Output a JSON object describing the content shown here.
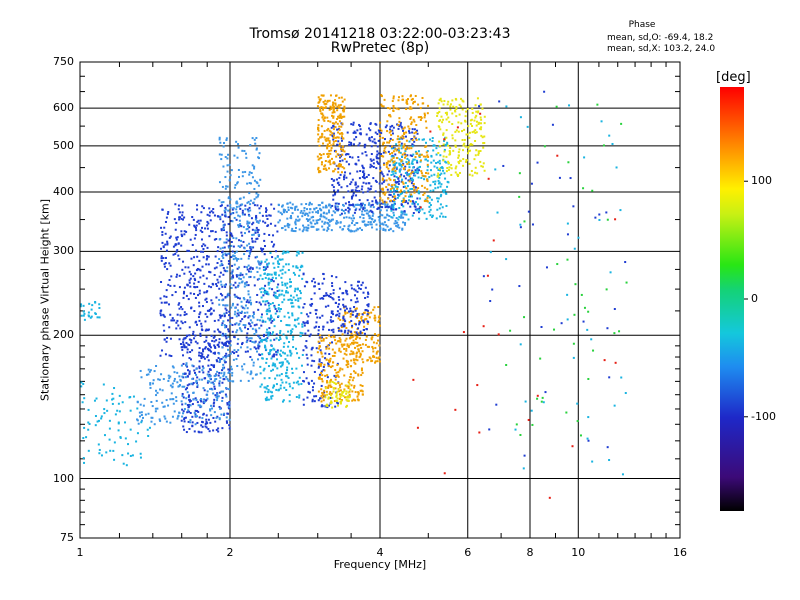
{
  "chart_data": {
    "type": "scatter",
    "title": "Tromsø 20141218 03:22:00-03:23:43",
    "subtitle": "RwPretec (8p)",
    "xlabel": "Frequency [MHz]",
    "ylabel": "Stationary phase Virtual Height [km]",
    "x_scale": "log",
    "y_scale": "log",
    "xlim": [
      1,
      16
    ],
    "ylim": [
      75,
      750
    ],
    "x_ticks": [
      1,
      2,
      4,
      6,
      8,
      10,
      16
    ],
    "x_grid": [
      2,
      4,
      6,
      8,
      10
    ],
    "y_ticks": [
      75,
      100,
      200,
      300,
      400,
      500,
      600,
      750
    ],
    "y_grid": [
      100,
      200,
      300,
      400,
      500,
      600
    ],
    "grid": true,
    "phase_legend": {
      "title": "Phase",
      "o_line": "mean, sd,O: -69.4, 18.2",
      "x_line": "mean, sd,X: 103.2, 24.0"
    },
    "colorbar": {
      "unit": "[deg]",
      "ticks": [
        100,
        0,
        -100
      ],
      "range": [
        -180,
        180
      ]
    },
    "colors": {
      "blue": "#1e3cd2",
      "cyan": "#19b4e1",
      "lightblue": "#3c96e6",
      "yellow": "#e6e614",
      "orange": "#f0a000",
      "red": "#e61e14",
      "green": "#28d23c",
      "lime": "#b4e61e"
    },
    "clusters": [
      {
        "x": [
          1.45,
          2.5
        ],
        "y": [
          180,
          380
        ],
        "color": "blue",
        "n": 700
      },
      {
        "x": [
          1.6,
          2.0
        ],
        "y": [
          125,
          200
        ],
        "color": "blue",
        "n": 250
      },
      {
        "x": [
          1.3,
          2.0
        ],
        "y": [
          130,
          175
        ],
        "color": "lightblue",
        "n": 200
      },
      {
        "x": [
          1.9,
          2.3
        ],
        "y": [
          160,
          520
        ],
        "color": "lightblue",
        "n": 350
      },
      {
        "x": [
          2.3,
          2.8
        ],
        "y": [
          145,
          300
        ],
        "color": "cyan",
        "n": 350
      },
      {
        "x": [
          2.5,
          4.5
        ],
        "y": [
          330,
          380
        ],
        "color": "lightblue",
        "n": 350
      },
      {
        "x": [
          3.2,
          4.8
        ],
        "y": [
          360,
          560
        ],
        "color": "blue",
        "n": 400
      },
      {
        "x": [
          4.2,
          5.5
        ],
        "y": [
          350,
          520
        ],
        "color": "cyan",
        "n": 250
      },
      {
        "x": [
          4.0,
          5.0
        ],
        "y": [
          380,
          640
        ],
        "color": "orange",
        "n": 250
      },
      {
        "x": [
          5.2,
          6.5
        ],
        "y": [
          430,
          630
        ],
        "color": "yellow",
        "n": 200
      },
      {
        "x": [
          3.0,
          3.4
        ],
        "y": [
          440,
          640
        ],
        "color": "orange",
        "n": 220
      },
      {
        "x": [
          2.8,
          3.3
        ],
        "y": [
          140,
          270
        ],
        "color": "blue",
        "n": 180
      },
      {
        "x": [
          3.0,
          3.7
        ],
        "y": [
          145,
          200
        ],
        "color": "orange",
        "n": 200
      },
      {
        "x": [
          3.3,
          4.0
        ],
        "y": [
          175,
          230
        ],
        "color": "orange",
        "n": 150
      },
      {
        "x": [
          3.3,
          3.8
        ],
        "y": [
          200,
          260
        ],
        "color": "blue",
        "n": 100
      },
      {
        "x": [
          3.1,
          3.5
        ],
        "y": [
          140,
          160
        ],
        "color": "yellow",
        "n": 60
      },
      {
        "x": [
          1.0,
          1.4
        ],
        "y": [
          105,
          160
        ],
        "color": "cyan",
        "n": 80
      },
      {
        "x": [
          1.0,
          1.1
        ],
        "y": [
          210,
          235
        ],
        "color": "cyan",
        "n": 25
      },
      {
        "x": [
          6.5,
          12.5
        ],
        "y": [
          100,
          650
        ],
        "color": "cyan",
        "n": 40
      },
      {
        "x": [
          7.0,
          12.5
        ],
        "y": [
          120,
          620
        ],
        "color": "green",
        "n": 40
      },
      {
        "x": [
          6.0,
          12.5
        ],
        "y": [
          100,
          650
        ],
        "color": "blue",
        "n": 35
      },
      {
        "x": [
          4.5,
          12.0
        ],
        "y": [
          90,
          650
        ],
        "color": "red",
        "n": 25
      }
    ]
  }
}
